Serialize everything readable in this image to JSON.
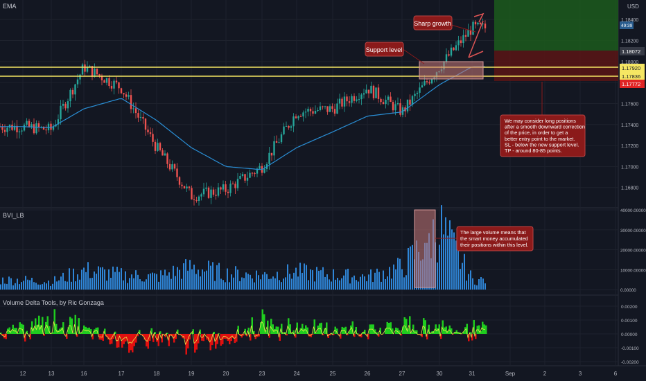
{
  "panes": {
    "price": {
      "indicator_label": "EMA",
      "currency": "USD"
    },
    "volume": {
      "indicator_label": "BVI_LB"
    },
    "delta": {
      "indicator_label": "Volume Delta Tools, by Ric Gonzaga"
    }
  },
  "price_badges": {
    "countdown": "49:39",
    "last": "1.18072",
    "support_upper": "1.17920",
    "support_lower": "1.17836",
    "stop": "1.17772"
  },
  "annotations": {
    "sharp_growth": "Sharp growth",
    "support_level": "Support level",
    "idea_lines": [
      "We may consider long positions",
      "after a smooth downward correction",
      "of the price, in order to get a",
      "better entry point to the market.",
      "SL - below the new support level.",
      "TP - around 80-85 points."
    ],
    "volume_lines": [
      "The large volume means that",
      "the smart money accumulated",
      "their positions within this level."
    ]
  },
  "colors": {
    "up": "#26a69a",
    "down": "#ef5350",
    "ema": "#2a8fd6",
    "support": "#f5e663",
    "volume": "#2f86d8",
    "delta_up": "#1fcc1f",
    "delta_down": "#e01010",
    "delta_line": "#e8e84a",
    "callout": "#8b1a1a",
    "target_zone": "#1c5a1c",
    "stop_zone": "#5a1515"
  },
  "chart_data": [
    {
      "type": "line",
      "title": "EMA",
      "ylabel": "USD",
      "x_ticks": [
        "12",
        "13",
        "16",
        "17",
        "18",
        "19",
        "20",
        "23",
        "24",
        "25",
        "26",
        "27",
        "30",
        "31",
        "Sep",
        "2",
        "3",
        "6"
      ],
      "y_ticks": [
        "1.18400",
        "1.18200",
        "1.18000",
        "1.17800",
        "1.17600",
        "1.17400",
        "1.17200",
        "1.17000",
        "1.16800"
      ],
      "ylim": [
        1.1662,
        1.1856
      ],
      "series": [
        {
          "name": "Price",
          "x": [
            "12",
            "13",
            "16",
            "17",
            "18",
            "19",
            "20",
            "23",
            "24",
            "25",
            "26",
            "27",
            "30",
            "31"
          ],
          "values": [
            1.1738,
            1.1735,
            1.1795,
            1.1775,
            1.1718,
            1.1672,
            1.1678,
            1.17,
            1.1752,
            1.1755,
            1.1775,
            1.1752,
            1.1795,
            1.1832
          ]
        },
        {
          "name": "EMA",
          "x": [
            "12",
            "13",
            "16",
            "17",
            "18",
            "19",
            "20",
            "23",
            "24",
            "25",
            "26",
            "27",
            "30",
            "31"
          ],
          "values": [
            1.1738,
            1.1737,
            1.1755,
            1.1765,
            1.1744,
            1.1718,
            1.17,
            1.1697,
            1.1718,
            1.1733,
            1.1748,
            1.1752,
            1.1778,
            1.1795
          ]
        }
      ],
      "support_levels": [
        1.1792,
        1.17836
      ],
      "stop_level": 1.17772,
      "last_price": 1.18072
    },
    {
      "type": "bar",
      "title": "BVI_LB",
      "y_ticks": [
        "40000.00000",
        "30000.00000",
        "20000.00000",
        "10000.00000",
        "0.00000"
      ],
      "ylim": [
        0,
        40000
      ],
      "categories": [
        "12",
        "13",
        "16",
        "17",
        "18",
        "19",
        "20",
        "23",
        "24",
        "25",
        "26",
        "27",
        "30",
        "31"
      ],
      "values": [
        6000,
        5000,
        12000,
        9000,
        8000,
        14000,
        10000,
        9000,
        11000,
        9000,
        8000,
        14000,
        39000,
        6000
      ],
      "peak_value": 39000
    },
    {
      "type": "area",
      "title": "Volume Delta Tools, by Ric Gonzaga",
      "y_ticks": [
        "0.00200",
        "0.00100",
        "0.00000",
        "-0.00100",
        "-0.00200"
      ],
      "ylim": [
        -0.0022,
        0.0026
      ],
      "categories": [
        "12",
        "13",
        "16",
        "17",
        "18",
        "19",
        "20",
        "23",
        "24",
        "25",
        "26",
        "27",
        "30",
        "31"
      ],
      "values": [
        0.0003,
        0.0012,
        0.0004,
        -0.0013,
        -0.0006,
        -0.0008,
        -0.0004,
        0.0009,
        0.0006,
        0.0005,
        0.0003,
        0.0008,
        0.0006,
        0.0004
      ]
    }
  ]
}
